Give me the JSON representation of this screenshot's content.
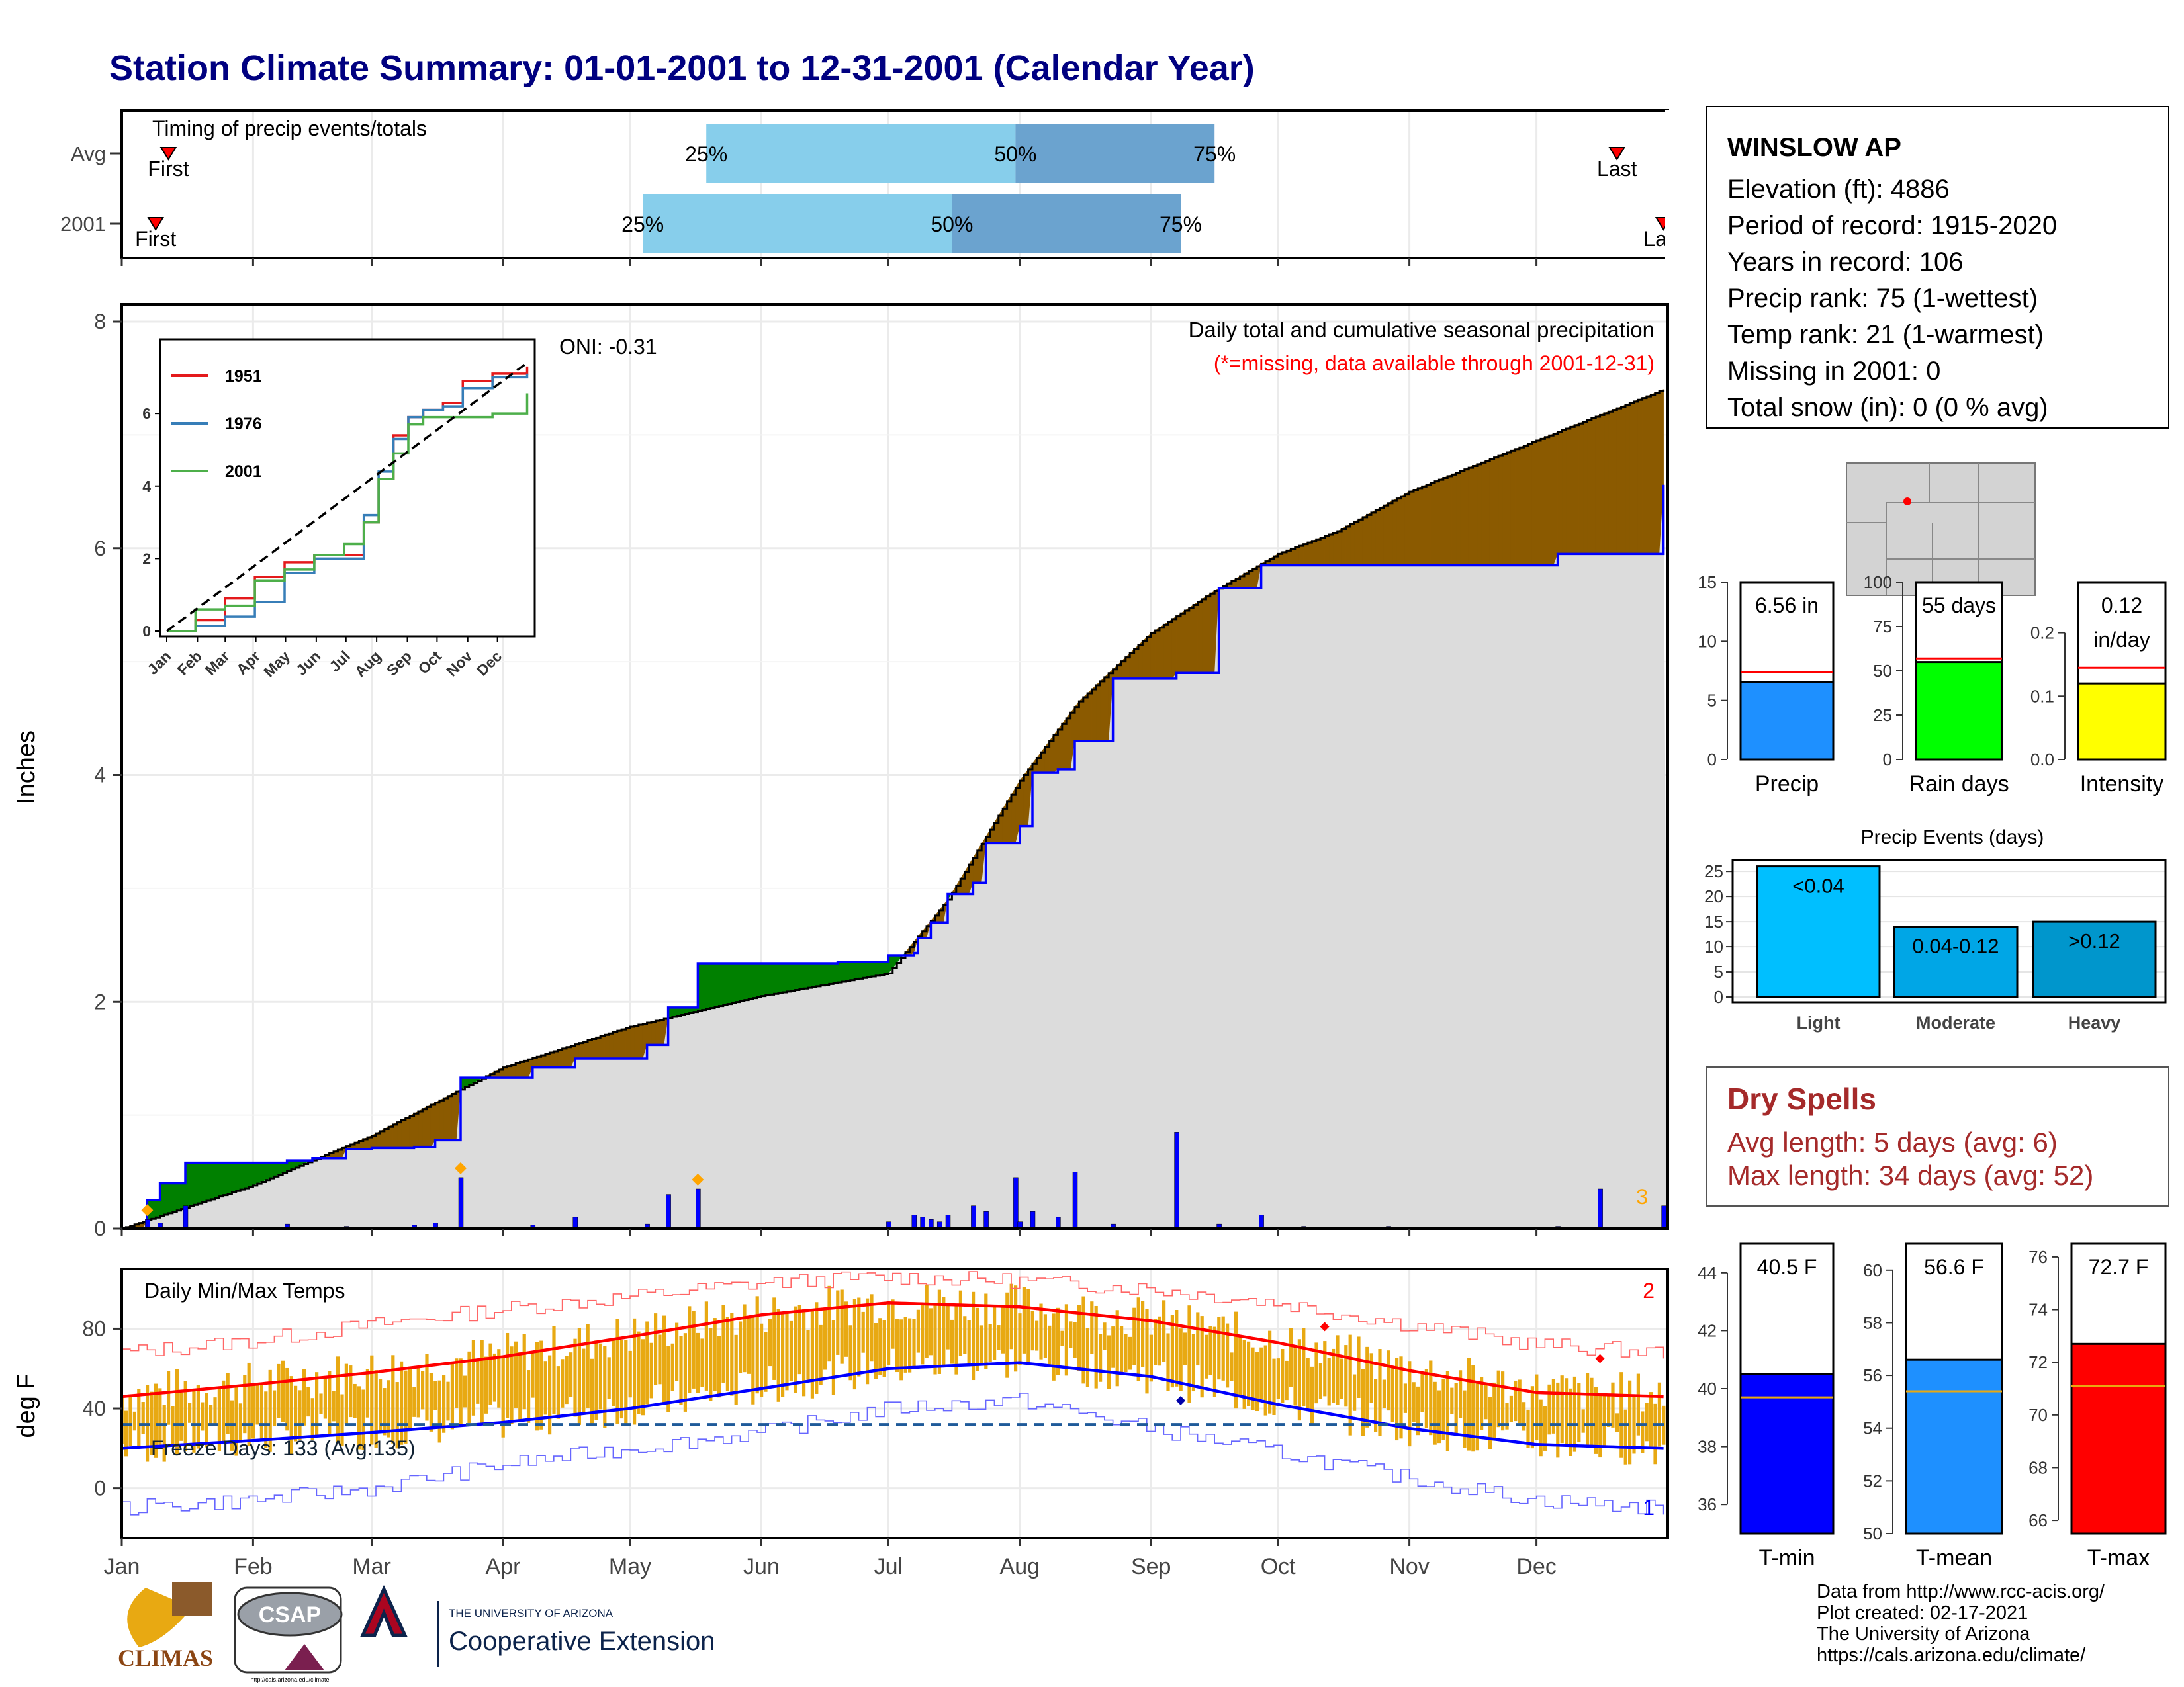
{
  "title": "Station Climate Summary: 01-01-2001 to 12-31-2001 (Calendar Year)",
  "station": {
    "name": "WINSLOW AP",
    "lines": [
      "Elevation (ft): 4886",
      "Period of record: 1915-2020",
      "Years in record: 106",
      "Precip rank: 75 (1-wettest)",
      "Temp rank: 21 (1-warmest)",
      "Missing in 2001: 0",
      "Total snow (in): 0 (0 % avg)"
    ]
  },
  "timing": {
    "label": "Timing of precip events/totals",
    "rows": [
      "Avg",
      "2001"
    ],
    "first_label": "First",
    "last_label": "Last",
    "pct_labels": [
      "25%",
      "50%",
      "75%"
    ]
  },
  "months": [
    "Jan",
    "Feb",
    "Mar",
    "Apr",
    "May",
    "Jun",
    "Jul",
    "Aug",
    "Sep",
    "Oct",
    "Nov",
    "Dec"
  ],
  "precip_panel": {
    "ylabel": "Inches",
    "yticks": [
      "0",
      "2",
      "4",
      "6",
      "8"
    ],
    "title": "Daily total and cumulative seasonal precipitation",
    "note": "(*=missing, data available through 2001-12-31)",
    "oni": "ONI: -0.31",
    "count_label": "3"
  },
  "inset": {
    "yticks": [
      "0",
      "2",
      "4",
      "6"
    ],
    "xticks": [
      "Jan",
      "Feb",
      "Mar",
      "Apr",
      "May",
      "Jun",
      "Jul",
      "Aug",
      "Sep",
      "Oct",
      "Nov",
      "Dec"
    ]
  },
  "temp_panel": {
    "ylabel": "deg F",
    "title": "Daily Min/Max Temps",
    "yticks": [
      "0",
      "40",
      "80"
    ],
    "freeze_label": "Freeze Days: 133 (Avg:135)",
    "count_top": "2",
    "count_bottom": "1"
  },
  "bar_panels": {
    "precip": {
      "label": "Precip",
      "value_label": "6.56 in",
      "yticks": [
        "0",
        "5",
        "10",
        "15"
      ]
    },
    "rain_days": {
      "label": "Rain days",
      "value_label": "55 days",
      "yticks": [
        "0",
        "25",
        "50",
        "75",
        "100"
      ]
    },
    "intensity": {
      "label": "Intensity",
      "value_label_1": "0.12",
      "value_label_2": "in/day",
      "yticks": [
        "0.0",
        "0.1",
        "0.2"
      ]
    },
    "events_title": "Precip Events (days)",
    "events_yticks": [
      "0",
      "5",
      "10",
      "15",
      "20",
      "25"
    ],
    "tmin": {
      "label": "T-min",
      "value_label": "40.5 F",
      "yticks": [
        "36",
        "38",
        "40",
        "42",
        "44"
      ]
    },
    "tmean": {
      "label": "T-mean",
      "value_label": "56.6 F",
      "yticks": [
        "50",
        "52",
        "54",
        "56",
        "58",
        "60"
      ]
    },
    "tmax": {
      "label": "T-max",
      "value_label": "72.7 F",
      "yticks": [
        "66",
        "68",
        "70",
        "72",
        "74",
        "76"
      ]
    }
  },
  "dry_spells": {
    "title": "Dry Spells",
    "avg": "Avg length: 5 days (avg: 6)",
    "max": "Max length: 34 days (avg: 52)"
  },
  "footer": {
    "lines": [
      "Data from http://www.rcc-acis.org/",
      "Plot created: 02-17-2021",
      "The University of Arizona",
      "https://cals.arizona.edu/climate/"
    ]
  },
  "logos": {
    "climas": "CLIMAS",
    "csap": "CSAP",
    "csap_url": "http://cals.arizona.edu/climate",
    "ua_small": "THE UNIVERSITY OF ARIZONA",
    "ua_big": "Cooperative Extension"
  },
  "colors": {
    "title": "#000080",
    "deficit": "#8B5A00",
    "surplus": "#008000",
    "climo": "#dcdcdc",
    "obs_line": "#0000ff",
    "bar_blue": "#0000ff",
    "tmax_line": "#ff0000",
    "tmin_line": "#0000ff",
    "range_bars": "#E8A912"
  },
  "chart_data": [
    {
      "type": "bar",
      "name": "timing",
      "categories": [
        "Avg",
        "2001"
      ],
      "series": [
        {
          "name": "25%",
          "values": [
            "2001-05-19",
            "2001-05-04"
          ]
        },
        {
          "name": "50%",
          "values": [
            "2001-07-31",
            "2001-07-16"
          ]
        },
        {
          "name": "75%",
          "values": [
            "2001-09-16",
            "2001-09-08"
          ]
        }
      ],
      "first": [
        "2001-01-12",
        "2001-01-09"
      ],
      "last": [
        "2001-12-20",
        "2001-12-31"
      ]
    },
    {
      "type": "area",
      "name": "cumulative_precip",
      "xlabel": "",
      "ylabel": "Inches",
      "ylim": [
        0,
        8
      ],
      "climatology": {
        "doy": [
          1,
          32,
          60,
          91,
          121,
          152,
          182,
          196,
          213,
          227,
          244,
          258,
          274,
          288,
          305,
          335,
          365
        ],
        "values": [
          0.0,
          0.38,
          0.82,
          1.42,
          1.78,
          2.05,
          2.25,
          2.9,
          3.95,
          4.65,
          5.25,
          5.6,
          5.95,
          6.15,
          6.5,
          6.95,
          7.4
        ]
      },
      "observed": {
        "doy": [
          1,
          7,
          10,
          16,
          40,
          46,
          54,
          60,
          70,
          75,
          81,
          98,
          108,
          125,
          130,
          137,
          170,
          182,
          188,
          189,
          192,
          196,
          202,
          205,
          213,
          216,
          222,
          226,
          235,
          250,
          260,
          270,
          340,
          365
        ],
        "values": [
          0.0,
          0.25,
          0.4,
          0.58,
          0.6,
          0.62,
          0.7,
          0.71,
          0.72,
          0.78,
          1.33,
          1.42,
          1.5,
          1.62,
          1.95,
          2.34,
          2.35,
          2.41,
          2.43,
          2.56,
          2.7,
          2.95,
          3.05,
          3.4,
          3.55,
          4.02,
          4.05,
          4.3,
          4.85,
          4.9,
          5.65,
          5.85,
          5.95,
          6.56
        ]
      },
      "daily_bars": {
        "doy": [
          7,
          10,
          16,
          40,
          54,
          70,
          75,
          81,
          98,
          108,
          125,
          130,
          137,
          182,
          188,
          190,
          192,
          194,
          196,
          202,
          205,
          212,
          213,
          216,
          222,
          226,
          235,
          250,
          260,
          270,
          280,
          300,
          340,
          350,
          365
        ],
        "values": [
          0.08,
          0.05,
          0.2,
          0.04,
          0.02,
          0.03,
          0.05,
          0.45,
          0.03,
          0.1,
          0.04,
          0.3,
          0.35,
          0.06,
          0.12,
          0.1,
          0.08,
          0.06,
          0.12,
          0.2,
          0.15,
          0.45,
          0.06,
          0.15,
          0.1,
          0.5,
          0.04,
          0.85,
          0.04,
          0.12,
          0.02,
          0.02,
          0.02,
          0.35,
          0.2
        ]
      },
      "record_markers_doy": [
        7,
        81,
        137
      ]
    },
    {
      "type": "line",
      "name": "inset_cumulative",
      "series": [
        {
          "name": "1951",
          "x": [
            1,
            30,
            60,
            90,
            120,
            150,
            180,
            200,
            215,
            230,
            245,
            260,
            280,
            300,
            330,
            365
          ],
          "values": [
            0.0,
            0.3,
            0.9,
            1.5,
            1.9,
            2.1,
            2.1,
            3.0,
            4.2,
            5.4,
            5.9,
            6.1,
            6.3,
            6.9,
            7.1,
            7.3
          ]
        },
        {
          "name": "1976",
          "x": [
            1,
            30,
            60,
            90,
            120,
            150,
            180,
            200,
            215,
            230,
            245,
            260,
            280,
            300,
            330,
            365
          ],
          "values": [
            0.0,
            0.15,
            0.4,
            0.8,
            1.6,
            2.0,
            2.0,
            3.2,
            4.4,
            5.3,
            5.9,
            6.1,
            6.2,
            6.7,
            7.0,
            7.1
          ]
        },
        {
          "name": "2001",
          "x": [
            1,
            30,
            60,
            90,
            120,
            150,
            180,
            200,
            215,
            230,
            245,
            260,
            280,
            300,
            330,
            365
          ],
          "values": [
            0.0,
            0.6,
            0.7,
            1.4,
            1.7,
            2.1,
            2.4,
            3.0,
            4.2,
            4.9,
            5.7,
            5.9,
            5.9,
            5.9,
            6.0,
            6.56
          ]
        }
      ],
      "climatology": {
        "x": [
          1,
          365
        ],
        "values": [
          0.0,
          7.4
        ]
      }
    },
    {
      "type": "line",
      "name": "daily_temps",
      "ylabel": "deg F",
      "ylim": [
        -25,
        110
      ],
      "avg_max": {
        "doy": [
          1,
          32,
          60,
          91,
          121,
          152,
          182,
          213,
          244,
          274,
          305,
          335,
          365
        ],
        "values": [
          46,
          52,
          58,
          66,
          76,
          87,
          93,
          91,
          84,
          73,
          59,
          48,
          46
        ]
      },
      "avg_min": {
        "doy": [
          1,
          32,
          60,
          91,
          121,
          152,
          182,
          213,
          244,
          274,
          305,
          335,
          365
        ],
        "values": [
          20,
          24,
          28,
          33,
          40,
          50,
          60,
          63,
          56,
          42,
          30,
          22,
          20
        ]
      },
      "record_max": {
        "doy": [
          1,
          32,
          60,
          91,
          121,
          152,
          182,
          213,
          244,
          274,
          305,
          335,
          365
        ],
        "values": [
          68,
          74,
          82,
          90,
          96,
          103,
          106,
          104,
          100,
          93,
          82,
          72,
          68
        ]
      },
      "record_min": {
        "doy": [
          1,
          32,
          60,
          91,
          121,
          152,
          182,
          213,
          244,
          274,
          305,
          335,
          365
        ],
        "values": [
          -10,
          -6,
          0,
          12,
          20,
          28,
          40,
          44,
          30,
          18,
          5,
          -6,
          -10
        ]
      },
      "freeze_line": 32,
      "freeze_days": 133,
      "freeze_days_avg": 135
    },
    {
      "type": "bar",
      "name": "precip_total",
      "categories": [
        "Precip"
      ],
      "values": [
        6.56
      ],
      "average": 7.4,
      "ylim": [
        0,
        15
      ]
    },
    {
      "type": "bar",
      "name": "rain_days",
      "categories": [
        "Rain days"
      ],
      "values": [
        55
      ],
      "average": 57,
      "ylim": [
        0,
        100
      ]
    },
    {
      "type": "bar",
      "name": "intensity",
      "categories": [
        "Intensity"
      ],
      "values": [
        0.12
      ],
      "average": 0.145,
      "ylim": [
        0,
        0.28
      ]
    },
    {
      "type": "bar",
      "name": "precip_events",
      "title": "Precip Events (days)",
      "categories": [
        "Light",
        "Moderate",
        "Heavy"
      ],
      "bar_labels": [
        "<0.04",
        "0.04-0.12",
        ">0.12"
      ],
      "values": [
        26,
        14,
        15
      ],
      "ylim": [
        0,
        27
      ]
    },
    {
      "type": "bar",
      "name": "tmin",
      "categories": [
        "T-min"
      ],
      "values": [
        40.5
      ],
      "average": 39.7,
      "ylim": [
        35,
        45
      ]
    },
    {
      "type": "bar",
      "name": "tmean",
      "categories": [
        "T-mean"
      ],
      "values": [
        56.6
      ],
      "average": 55.4,
      "ylim": [
        50,
        61
      ]
    },
    {
      "type": "bar",
      "name": "tmax",
      "categories": [
        "T-max"
      ],
      "values": [
        72.7
      ],
      "average": 71.1,
      "ylim": [
        65.5,
        76.5
      ]
    }
  ]
}
